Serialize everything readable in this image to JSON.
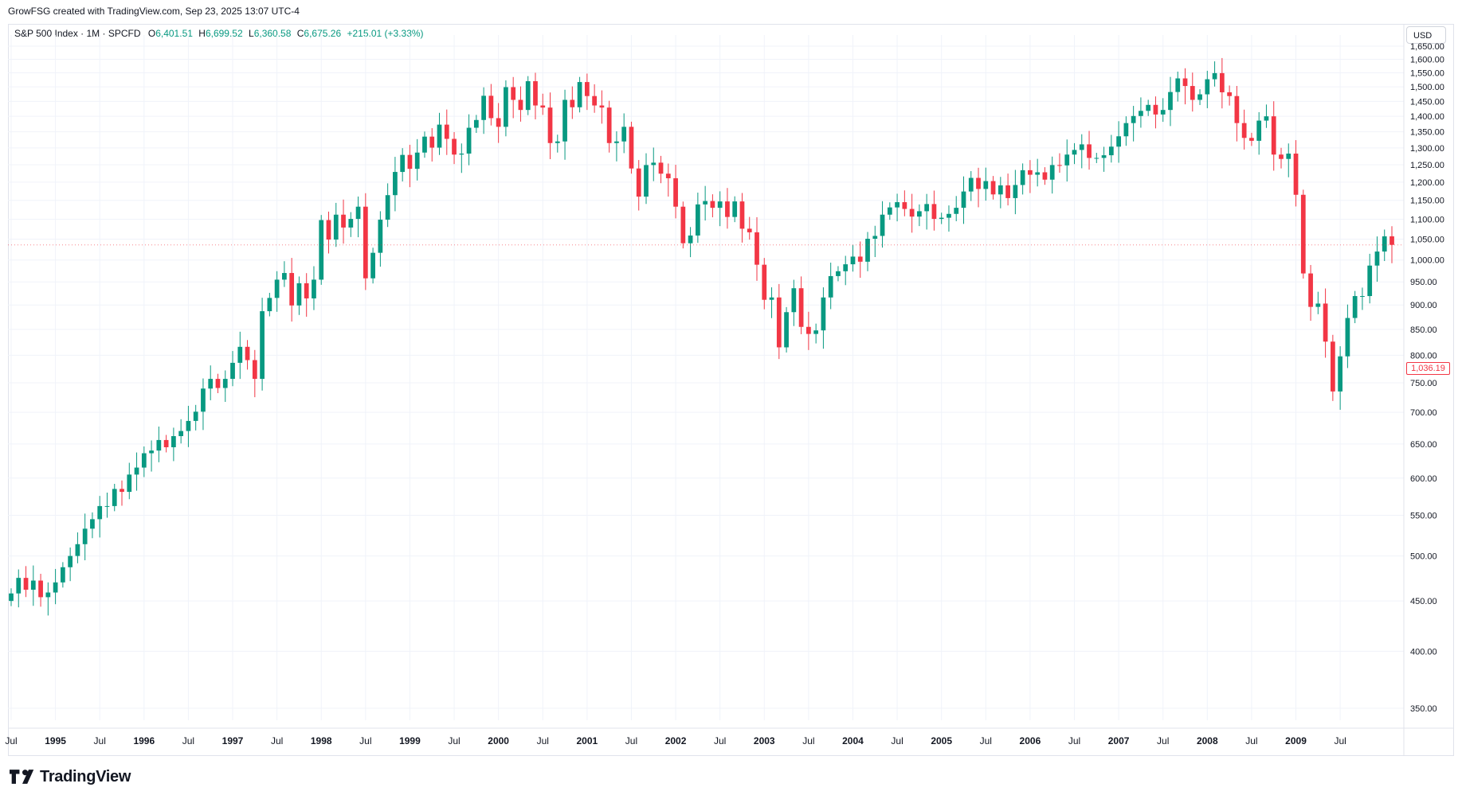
{
  "header": {
    "credit": "GrowFSG created with TradingView.com, Sep 23, 2025 13:07 UTC-4"
  },
  "legend": {
    "symbol": "S&P 500 Index · 1M · SPCFD",
    "o_label": "O",
    "o_value": "6,401.51",
    "h_label": "H",
    "h_value": "6,699.52",
    "l_label": "L",
    "l_value": "6,360.58",
    "c_label": "C",
    "c_value": "6,675.26",
    "change": "+215.01 (+3.33%)"
  },
  "price_axis": {
    "currency": "USD",
    "last_price": "1,036.19"
  },
  "brand": {
    "name": "TradingView"
  },
  "colors": {
    "up": "#089981",
    "down": "#f23645",
    "grid": "#f0f3fa",
    "axis_text": "#131722"
  },
  "chart_data": {
    "type": "candlestick",
    "title": "S&P 500 Index",
    "interval": "1M",
    "ylim": [
      320,
      1680
    ],
    "y_scale": "log",
    "y_ticks": [
      350,
      400,
      450,
      500,
      550,
      600,
      650,
      700,
      750,
      800,
      850,
      900,
      950,
      1000,
      1050,
      1100,
      1150,
      1200,
      1250,
      1300,
      1350,
      1400,
      1450,
      1500,
      1550,
      1600,
      1650
    ],
    "y_tick_labels": [
      "350.00",
      "400.00",
      "450.00",
      "500.00",
      "550.00",
      "600.00",
      "650.00",
      "700.00",
      "750.00",
      "800.00",
      "850.00",
      "900.00",
      "950.00",
      "1,000.00",
      "1,050.00",
      "1,100.00",
      "1,150.00",
      "1,200.00",
      "1,250.00",
      "1,300.00",
      "1,350.00",
      "1,400.00",
      "1,450.00",
      "1,500.00",
      "1,550.00",
      "1,600.00",
      "1,650.00"
    ],
    "x_tick_labels": [
      "Jul",
      "1995",
      "Jul",
      "1996",
      "Jul",
      "1997",
      "Jul",
      "1998",
      "Jul",
      "1999",
      "Jul",
      "2000",
      "Jul",
      "2001",
      "Jul",
      "2002",
      "Jul",
      "2003",
      "Jul",
      "2004",
      "Jul",
      "2005",
      "Jul",
      "2006",
      "Jul",
      "2007",
      "Jul",
      "2008",
      "Jul",
      "2009",
      "Jul"
    ],
    "x_tick_bold": [
      false,
      true,
      false,
      true,
      false,
      true,
      false,
      true,
      false,
      true,
      false,
      true,
      false,
      true,
      false,
      true,
      false,
      true,
      false,
      true,
      false,
      true,
      false,
      true,
      false,
      true,
      false,
      true,
      false,
      true,
      false
    ],
    "start": "1994-07",
    "closes": [
      458,
      475,
      462,
      472,
      454,
      459,
      470,
      487,
      500,
      514,
      533,
      545,
      562,
      562,
      585,
      581,
      605,
      615,
      636,
      640,
      656,
      645,
      662,
      670,
      686,
      701,
      740,
      757,
      741,
      757,
      786,
      816,
      791,
      757,
      887,
      915,
      955,
      970,
      899,
      947,
      914,
      955,
      1098,
      1049,
      1112,
      1079,
      1101,
      1133,
      958,
      1017,
      1099,
      1164,
      1229,
      1279,
      1238,
      1286,
      1335,
      1301,
      1373,
      1328,
      1280,
      1283,
      1363,
      1388,
      1469,
      1394,
      1366,
      1499,
      1455,
      1421,
      1520,
      1436,
      1429,
      1315,
      1320,
      1455,
      1430,
      1517,
      1468,
      1436,
      1429,
      1315,
      1320,
      1366,
      1239,
      1160,
      1249,
      1256,
      1224,
      1211,
      1133,
      1040,
      1059,
      1139,
      1148,
      1130,
      1147,
      1106,
      1147,
      1076,
      1067,
      989,
      911,
      916,
      815,
      885,
      936,
      855,
      841,
      848,
      916,
      963,
      974,
      990,
      1008,
      996,
      1051,
      1058,
      1112,
      1131,
      1145,
      1127,
      1107,
      1121,
      1140,
      1101,
      1104,
      1114,
      1130,
      1174,
      1212,
      1181,
      1203,
      1166,
      1191,
      1156,
      1192,
      1234,
      1221,
      1228,
      1207,
      1249,
      1248,
      1280,
      1294,
      1311,
      1270,
      1270,
      1278,
      1304,
      1336,
      1378,
      1401,
      1418,
      1438,
      1406,
      1421,
      1482,
      1530,
      1503,
      1455,
      1474,
      1527,
      1549,
      1481,
      1468,
      1378,
      1331,
      1322,
      1386,
      1400,
      1280,
      1267,
      1283,
      1165,
      969,
      896,
      903,
      826,
      735,
      798,
      873,
      919,
      919,
      987,
      1020,
      1057,
      1036
    ],
    "highs_note": "approximate OHLC read from candles"
  }
}
